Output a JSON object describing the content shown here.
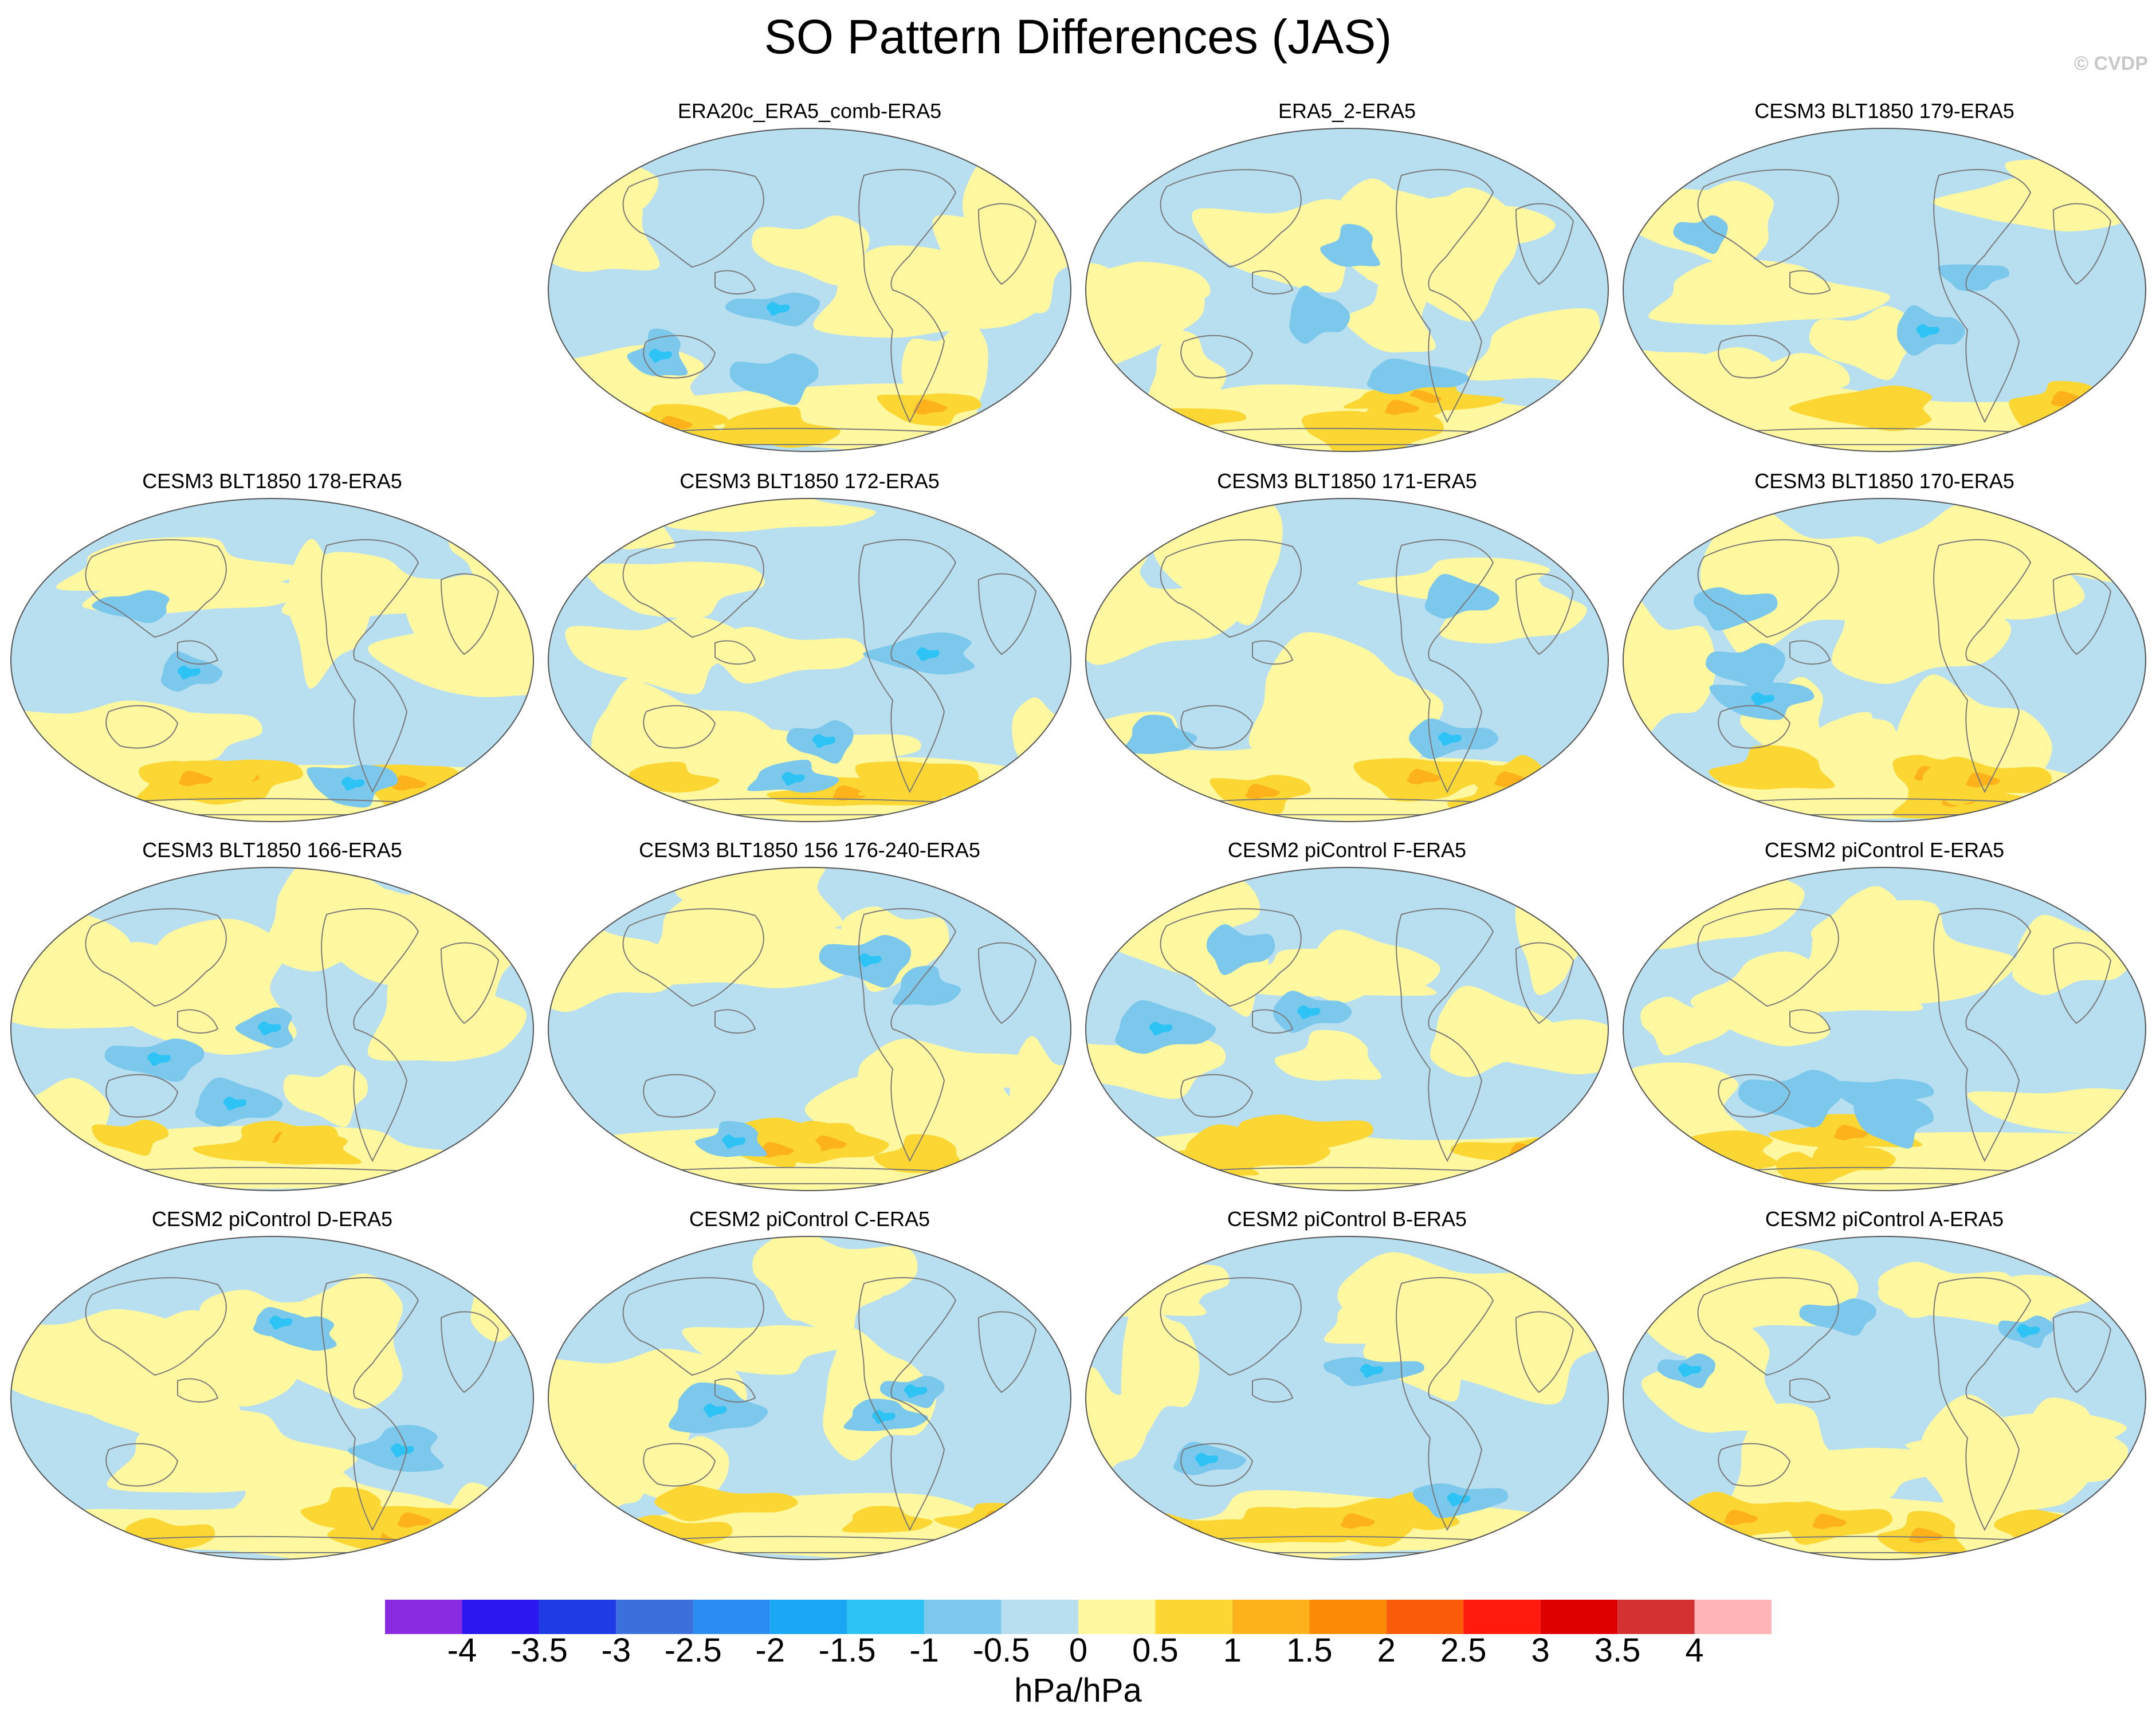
{
  "title": "SO Pattern Differences (JAS)",
  "copyright": "© CVDP",
  "colorbar": {
    "unit_label": "hPa/hPa",
    "ticks": [
      "-4",
      "-3.5",
      "-3",
      "-2.5",
      "-2",
      "-1.5",
      "-1",
      "-0.5",
      "0",
      "0.5",
      "1",
      "1.5",
      "2",
      "2.5",
      "3",
      "3.5",
      "4"
    ],
    "colors": [
      "#8a2be2",
      "#2b18f0",
      "#1e3ce6",
      "#3b6fdc",
      "#2a8bf0",
      "#19a7f5",
      "#2dc3f5",
      "#7cc8ec",
      "#b7dff0",
      "#fff8a0",
      "#fcd733",
      "#fdb11b",
      "#fc8a05",
      "#fb5c0a",
      "#fe1b0d",
      "#de0000",
      "#d43232",
      "#ffb5b5"
    ]
  },
  "panels": [
    {
      "title": "ERA20c_ERA5_comb-ERA5",
      "row": 0,
      "col": 1
    },
    {
      "title": "ERA5_2-ERA5",
      "row": 0,
      "col": 2
    },
    {
      "title": "CESM3 BLT1850 179-ERA5",
      "row": 0,
      "col": 3
    },
    {
      "title": "CESM3 BLT1850 178-ERA5",
      "row": 1,
      "col": 0
    },
    {
      "title": "CESM3 BLT1850 172-ERA5",
      "row": 1,
      "col": 1
    },
    {
      "title": "CESM3 BLT1850 171-ERA5",
      "row": 1,
      "col": 2
    },
    {
      "title": "CESM3 BLT1850 170-ERA5",
      "row": 1,
      "col": 3
    },
    {
      "title": "CESM3 BLT1850 166-ERA5",
      "row": 2,
      "col": 0
    },
    {
      "title": "CESM3 BLT1850 156 176-240-ERA5",
      "row": 2,
      "col": 1
    },
    {
      "title": "CESM2 piControl F-ERA5",
      "row": 2,
      "col": 2
    },
    {
      "title": "CESM2 piControl E-ERA5",
      "row": 2,
      "col": 3
    },
    {
      "title": "CESM2 piControl D-ERA5",
      "row": 3,
      "col": 0
    },
    {
      "title": "CESM2 piControl C-ERA5",
      "row": 3,
      "col": 1
    },
    {
      "title": "CESM2 piControl B-ERA5",
      "row": 3,
      "col": 2
    },
    {
      "title": "CESM2 piControl A-ERA5",
      "row": 3,
      "col": 3
    }
  ]
}
